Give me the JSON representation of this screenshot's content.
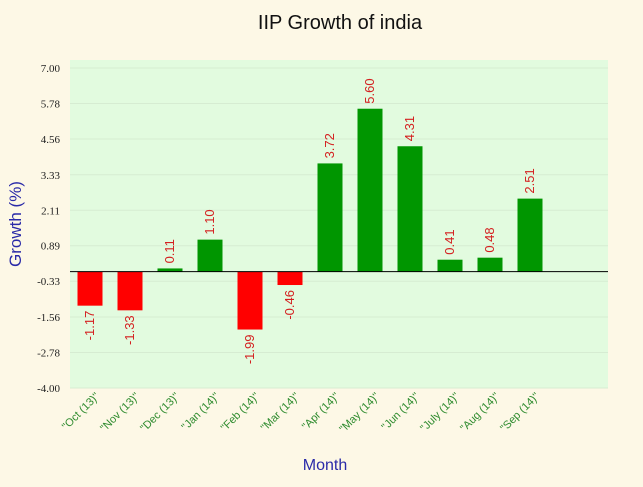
{
  "chart_data": {
    "type": "bar",
    "title": "IIP Growth of india",
    "xlabel": "Month",
    "ylabel": "Growth (%)",
    "categories": [
      "\"Oct (13)\"",
      "\"Nov (13)\"",
      "\"Dec (13)\"",
      "\"Jan (14)\"",
      "\"Feb (14)\"",
      "\"Mar (14)\"",
      "\"Apr (14)\"",
      "\"May (14)\"",
      "\"Jun (14)\"",
      "\"July (14)\"",
      "\"Aug (14)\"",
      "\"Sep (14)\""
    ],
    "values": [
      -1.17,
      -1.33,
      0.11,
      1.1,
      -1.99,
      -0.46,
      3.72,
      5.6,
      4.31,
      0.41,
      0.48,
      2.51
    ],
    "value_labels": [
      "-1.17",
      "-1.33",
      "0.11",
      "1.10",
      "-1.99",
      "-0.46",
      "3.72",
      "5.60",
      "4.31",
      "0.41",
      "0.48",
      "2.51"
    ],
    "yticks": [
      "7.00",
      "5.78",
      "4.56",
      "3.33",
      "2.11",
      "0.89",
      "-0.33",
      "-1.56",
      "-2.78",
      "-4.00"
    ],
    "ylim": [
      -4.0,
      7.0
    ],
    "grid": true,
    "colors": {
      "positive": "#009600",
      "negative": "#ff0000",
      "plot_background": "#e2fbdf",
      "page_background": "#fdf8e6",
      "gridline": "#d6ecd2",
      "baseline": "#000000"
    }
  }
}
